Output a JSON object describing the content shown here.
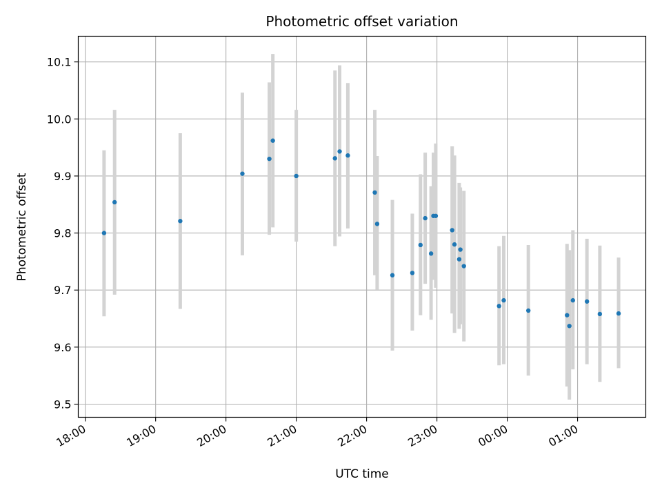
{
  "chart_data": {
    "type": "scatter",
    "title": "Photometric offset variation",
    "xlabel": "UTC time",
    "ylabel": "Photometric offset",
    "x_tick_labels": [
      "18:00",
      "19:00",
      "20:00",
      "21:00",
      "22:00",
      "23:00",
      "00:00",
      "01:00"
    ],
    "y_tick_labels": [
      "9.5",
      "9.6",
      "9.7",
      "9.8",
      "9.9",
      "10.0",
      "10.1"
    ],
    "y_ticks": [
      9.5,
      9.6,
      9.7,
      9.8,
      9.9,
      10.0,
      10.1
    ],
    "ylim": [
      9.477,
      10.145
    ],
    "xlim_hours_utc": [
      17.9,
      25.97
    ],
    "grid": true,
    "colors": {
      "marker": "#1f77b4",
      "errorbar": "#d3d3d3",
      "grid": "#b0b0b0"
    },
    "points": [
      {
        "t": "18:16",
        "y": 9.8,
        "lo": 9.654,
        "hi": 9.945
      },
      {
        "t": "18:25",
        "y": 9.854,
        "lo": 9.692,
        "hi": 10.016
      },
      {
        "t": "19:21",
        "y": 9.821,
        "lo": 9.667,
        "hi": 9.975
      },
      {
        "t": "20:14",
        "y": 9.904,
        "lo": 9.761,
        "hi": 10.046
      },
      {
        "t": "20:37",
        "y": 9.93,
        "lo": 9.797,
        "hi": 10.064
      },
      {
        "t": "20:40",
        "y": 9.962,
        "lo": 9.81,
        "hi": 10.114
      },
      {
        "t": "21:00",
        "y": 9.9,
        "lo": 9.785,
        "hi": 10.016
      },
      {
        "t": "21:33",
        "y": 9.931,
        "lo": 9.777,
        "hi": 10.085
      },
      {
        "t": "21:37",
        "y": 9.943,
        "lo": 9.794,
        "hi": 10.094
      },
      {
        "t": "21:44",
        "y": 9.936,
        "lo": 9.808,
        "hi": 10.063
      },
      {
        "t": "22:07",
        "y": 9.871,
        "lo": 9.726,
        "hi": 10.016
      },
      {
        "t": "22:09",
        "y": 9.816,
        "lo": 9.701,
        "hi": 9.935
      },
      {
        "t": "22:22",
        "y": 9.726,
        "lo": 9.594,
        "hi": 9.858
      },
      {
        "t": "22:39",
        "y": 9.73,
        "lo": 9.629,
        "hi": 9.834
      },
      {
        "t": "22:46",
        "y": 9.779,
        "lo": 9.656,
        "hi": 9.903
      },
      {
        "t": "22:50",
        "y": 9.826,
        "lo": 9.711,
        "hi": 9.941
      },
      {
        "t": "22:55",
        "y": 9.764,
        "lo": 9.648,
        "hi": 9.882
      },
      {
        "t": "22:57",
        "y": 9.83,
        "lo": 9.718,
        "hi": 9.941
      },
      {
        "t": "22:59",
        "y": 9.83,
        "lo": 9.704,
        "hi": 9.957
      },
      {
        "t": "23:13",
        "y": 9.805,
        "lo": 9.659,
        "hi": 9.952
      },
      {
        "t": "23:15",
        "y": 9.78,
        "lo": 9.625,
        "hi": 9.936
      },
      {
        "t": "23:19",
        "y": 9.754,
        "lo": 9.632,
        "hi": 9.888
      },
      {
        "t": "23:20",
        "y": 9.771,
        "lo": 9.64,
        "hi": 9.88
      },
      {
        "t": "23:23",
        "y": 9.742,
        "lo": 9.61,
        "hi": 9.874
      },
      {
        "t": "23:53",
        "y": 9.672,
        "lo": 9.568,
        "hi": 9.777
      },
      {
        "t": "23:57",
        "y": 9.682,
        "lo": 9.57,
        "hi": 9.795
      },
      {
        "t": "00:18",
        "y": 9.664,
        "lo": 9.55,
        "hi": 9.779
      },
      {
        "t": "00:51",
        "y": 9.656,
        "lo": 9.531,
        "hi": 9.781
      },
      {
        "t": "00:53",
        "y": 9.637,
        "lo": 9.508,
        "hi": 9.77
      },
      {
        "t": "00:56",
        "y": 9.682,
        "lo": 9.561,
        "hi": 9.805
      },
      {
        "t": "01:08",
        "y": 9.68,
        "lo": 9.57,
        "hi": 9.79
      },
      {
        "t": "01:19",
        "y": 9.658,
        "lo": 9.539,
        "hi": 9.778
      },
      {
        "t": "01:35",
        "y": 9.659,
        "lo": 9.563,
        "hi": 9.757
      }
    ]
  }
}
